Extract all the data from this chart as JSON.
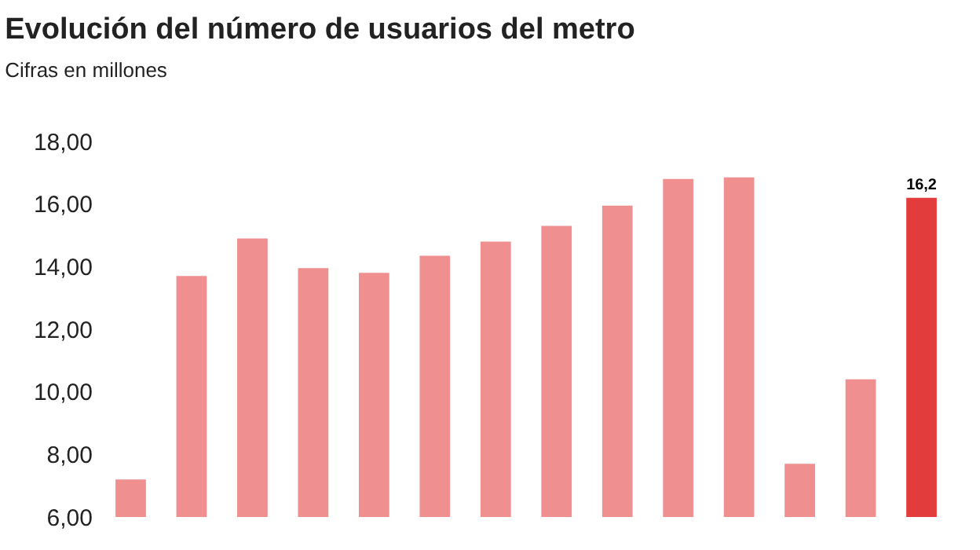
{
  "chart_data": {
    "type": "bar",
    "title": "Evolución del número de usuarios del metro",
    "subtitle": "Cifras en millones",
    "categories": [
      null,
      null,
      null,
      null,
      null,
      null,
      null,
      null,
      null,
      null,
      null,
      null,
      null,
      null
    ],
    "values": [
      7.2,
      13.7,
      14.9,
      13.95,
      13.8,
      14.35,
      14.8,
      15.3,
      15.95,
      16.8,
      16.85,
      7.7,
      10.4,
      16.2
    ],
    "colors": [
      "#ef8f8f",
      "#ef8f8f",
      "#ef8f8f",
      "#ef8f8f",
      "#ef8f8f",
      "#ef8f8f",
      "#ef8f8f",
      "#ef8f8f",
      "#ef8f8f",
      "#ef8f8f",
      "#ef8f8f",
      "#ef8f8f",
      "#ef8f8f",
      "#e23c3c"
    ],
    "value_labels": [
      null,
      null,
      null,
      null,
      null,
      null,
      null,
      null,
      null,
      null,
      null,
      null,
      null,
      "16,2"
    ],
    "ylim": [
      6,
      18
    ],
    "yticks": [
      {
        "value": 6,
        "label": "6,00"
      },
      {
        "value": 8,
        "label": "8,00"
      },
      {
        "value": 10,
        "label": "10,00"
      },
      {
        "value": 12,
        "label": "12,00"
      },
      {
        "value": 14,
        "label": "14,00"
      },
      {
        "value": 16,
        "label": "16,00"
      },
      {
        "value": 18,
        "label": "18,00"
      }
    ]
  }
}
